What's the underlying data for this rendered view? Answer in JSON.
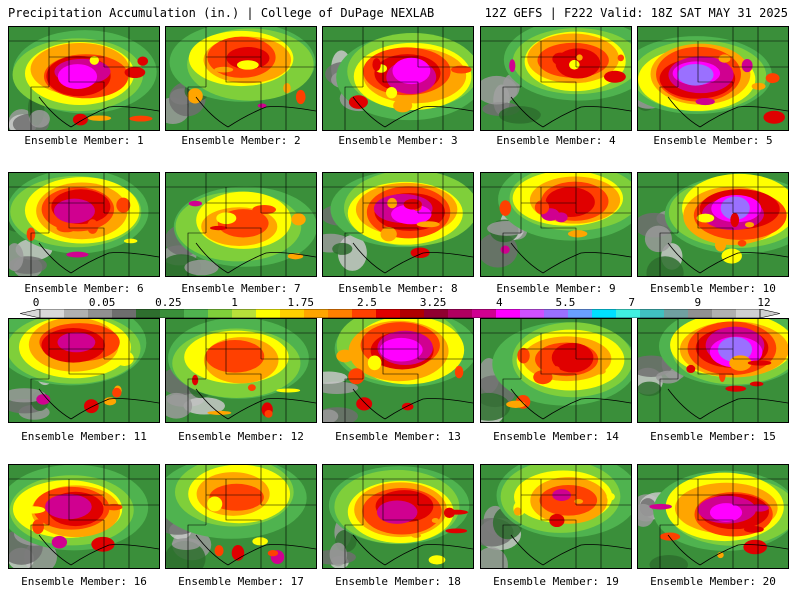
{
  "header": {
    "left": "Precipitation Accumulation (in.) | College of DuPage NEXLAB",
    "right": "12Z GEFS | F222 Valid: 18Z SAT MAY 31 2025"
  },
  "colorbar": {
    "ticks": [
      "0",
      "0.05",
      "0.25",
      "1",
      "1.75",
      "2.5",
      "3.25",
      "4",
      "5.5",
      "7",
      "9",
      "12"
    ],
    "colors": [
      "#d8d8d8",
      "#b0b0b0",
      "#909090",
      "#6e6e6e",
      "#2e6e2e",
      "#3a8f3a",
      "#4fb34f",
      "#7fcf3a",
      "#b8e03a",
      "#ffff00",
      "#ffd000",
      "#ffa500",
      "#ff7f00",
      "#ff4000",
      "#e00000",
      "#b00000",
      "#900030",
      "#b00060",
      "#d00090",
      "#ff00ff",
      "#d050ff",
      "#9a70ff",
      "#6aa0ff",
      "#00e0ff",
      "#40f0e0",
      "#40c0c0",
      "#70a0a0",
      "#909090",
      "#b0b0b0",
      "#d0d0d0"
    ]
  },
  "panels": [
    {
      "label": "Ensemble Member: 1"
    },
    {
      "label": "Ensemble Member: 2"
    },
    {
      "label": "Ensemble Member: 3"
    },
    {
      "label": "Ensemble Member: 4"
    },
    {
      "label": "Ensemble Member: 5"
    },
    {
      "label": "Ensemble Member: 6"
    },
    {
      "label": "Ensemble Member: 7"
    },
    {
      "label": "Ensemble Member: 8"
    },
    {
      "label": "Ensemble Member: 9"
    },
    {
      "label": "Ensemble Member: 10"
    },
    {
      "label": "Ensemble Member: 11"
    },
    {
      "label": "Ensemble Member: 12"
    },
    {
      "label": "Ensemble Member: 13"
    },
    {
      "label": "Ensemble Member: 14"
    },
    {
      "label": "Ensemble Member: 15"
    },
    {
      "label": "Ensemble Member: 16"
    },
    {
      "label": "Ensemble Member: 17"
    },
    {
      "label": "Ensemble Member: 18"
    },
    {
      "label": "Ensemble Member: 19"
    },
    {
      "label": "Ensemble Member: 20"
    }
  ]
}
